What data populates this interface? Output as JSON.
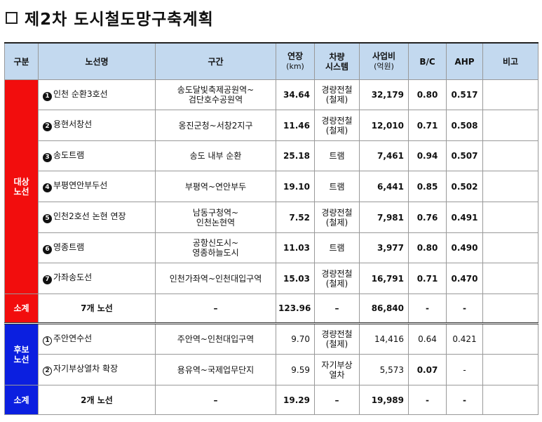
{
  "title": "제2차 도시철도망구축계획",
  "headers": {
    "category": "구분",
    "name": "노선명",
    "section": "구간",
    "length": "연장",
    "length_unit": "(km)",
    "vehicle": [
      "차량",
      "시스템"
    ],
    "cost": "사업비",
    "cost_unit": "(억원)",
    "bc": "B/C",
    "ahp": "AHP",
    "note": "비고"
  },
  "main_group": {
    "label": [
      "대상",
      "노선"
    ],
    "rows": [
      {
        "num": "1",
        "name": "인천 순환3호선",
        "section": [
          "송도달빛축제공원역~",
          "검단호수공원역"
        ],
        "length": "34.64",
        "vehicle": [
          "경량전철",
          "(철제)"
        ],
        "cost": "32,179",
        "bc": "0.80",
        "ahp": "0.517",
        "note": ""
      },
      {
        "num": "2",
        "name": "용현서창선",
        "section": [
          "옹진군청~서창2지구"
        ],
        "length": "11.46",
        "vehicle": [
          "경량전철",
          "(철제)"
        ],
        "cost": "12,010",
        "bc": "0.71",
        "ahp": "0.508",
        "note": ""
      },
      {
        "num": "3",
        "name": "송도트램",
        "section": [
          "송도 내부 순환"
        ],
        "length": "25.18",
        "vehicle": [
          "트램"
        ],
        "cost": "7,461",
        "bc": "0.94",
        "ahp": "0.507",
        "note": ""
      },
      {
        "num": "4",
        "name": "부평연안부두선",
        "section": [
          "부평역~연안부두"
        ],
        "length": "19.10",
        "vehicle": [
          "트램"
        ],
        "cost": "6,441",
        "bc": "0.85",
        "ahp": "0.502",
        "note": ""
      },
      {
        "num": "5",
        "name": "인천2호선 논현 연장",
        "section": [
          "남동구청역~",
          "인천논현역"
        ],
        "length": "7.52",
        "vehicle": [
          "경량전철",
          "(철제)"
        ],
        "cost": "7,981",
        "bc": "0.76",
        "ahp": "0.491",
        "note": ""
      },
      {
        "num": "6",
        "name": "영종트램",
        "section": [
          "공항신도시~",
          "영종하늘도시"
        ],
        "length": "11.03",
        "vehicle": [
          "트램"
        ],
        "cost": "3,977",
        "bc": "0.80",
        "ahp": "0.490",
        "note": ""
      },
      {
        "num": "7",
        "name": "가좌송도선",
        "section": [
          "인천가좌역~인천대입구역"
        ],
        "length": "15.03",
        "vehicle": [
          "경량전철",
          "(철제)"
        ],
        "cost": "16,791",
        "bc": "0.71",
        "ahp": "0.470",
        "note": ""
      }
    ],
    "subtotal": {
      "label": "소계",
      "name": "7개 노선",
      "section": "–",
      "length": "123.96",
      "vehicle": "–",
      "cost": "86,840",
      "bc": "-",
      "ahp": "-",
      "note": ""
    }
  },
  "candidate_group": {
    "label": [
      "후보",
      "노선"
    ],
    "rows": [
      {
        "num": "①",
        "name": "주안연수선",
        "section": [
          "주안역~인천대입구역"
        ],
        "length": "9.70",
        "vehicle": [
          "경량전철",
          "(철제)"
        ],
        "cost": "14,416",
        "bc": "0.64",
        "ahp": "0.421",
        "note": ""
      },
      {
        "num": "②",
        "name": "자기부상열차 확장",
        "section": [
          "용유역~국제업무단지"
        ],
        "length": "9.59",
        "vehicle": [
          "자기부상",
          "열차"
        ],
        "cost": "5,573",
        "bc": "0.07",
        "ahp": "-",
        "note": ""
      }
    ],
    "subtotal": {
      "label": "소계",
      "name": "2개 노선",
      "section": "–",
      "length": "19.29",
      "vehicle": "–",
      "cost": "19,989",
      "bc": "-",
      "ahp": "-",
      "note": ""
    }
  },
  "colors": {
    "main_group": "#f20d0d",
    "candidate_group": "#0b1fe0",
    "header": "#c3d9ef"
  }
}
